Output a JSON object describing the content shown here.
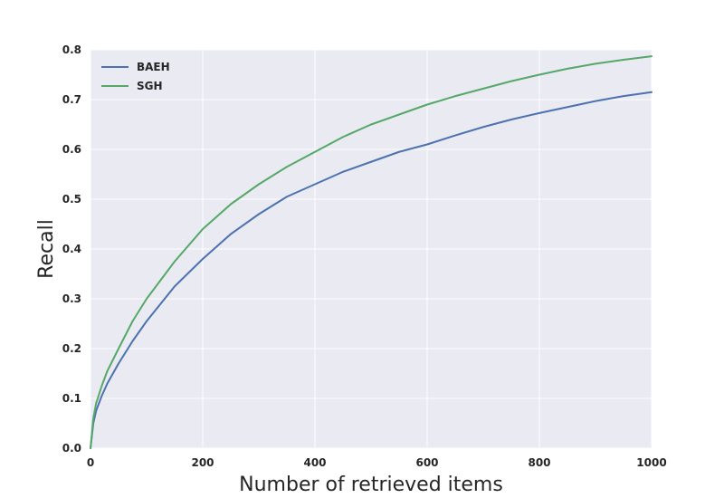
{
  "chart_data": {
    "type": "line",
    "title": "",
    "xlabel": "Number of retrieved items",
    "ylabel": "Recall",
    "xlim": [
      0,
      1000
    ],
    "ylim": [
      0.0,
      0.8
    ],
    "xticks": [
      0,
      200,
      400,
      600,
      800,
      1000
    ],
    "xtick_labels": [
      "0",
      "200",
      "400",
      "600",
      "800",
      "1000"
    ],
    "yticks": [
      0.0,
      0.1,
      0.2,
      0.3,
      0.4,
      0.5,
      0.6,
      0.7,
      0.8
    ],
    "ytick_labels": [
      "0.0",
      "0.1",
      "0.2",
      "0.3",
      "0.4",
      "0.5",
      "0.6",
      "0.7",
      "0.8"
    ],
    "grid": true,
    "background_color": "#eaeaf2",
    "grid_color": "#ffffff",
    "legend_position": "top-left",
    "x": [
      0,
      5,
      10,
      20,
      30,
      50,
      75,
      100,
      150,
      200,
      250,
      300,
      350,
      400,
      450,
      500,
      550,
      600,
      650,
      700,
      750,
      800,
      850,
      900,
      950,
      1000
    ],
    "series": [
      {
        "name": "BAEH",
        "color": "#4c72b0",
        "values": [
          0.0,
          0.05,
          0.075,
          0.105,
          0.13,
          0.17,
          0.215,
          0.255,
          0.325,
          0.38,
          0.43,
          0.47,
          0.505,
          0.53,
          0.555,
          0.575,
          0.595,
          0.61,
          0.628,
          0.645,
          0.66,
          0.673,
          0.685,
          0.697,
          0.707,
          0.715
        ]
      },
      {
        "name": "SGH",
        "color": "#55a868",
        "values": [
          0.0,
          0.06,
          0.09,
          0.125,
          0.155,
          0.2,
          0.255,
          0.3,
          0.375,
          0.44,
          0.49,
          0.53,
          0.565,
          0.595,
          0.625,
          0.65,
          0.67,
          0.69,
          0.707,
          0.722,
          0.737,
          0.75,
          0.762,
          0.772,
          0.78,
          0.787
        ]
      }
    ]
  }
}
